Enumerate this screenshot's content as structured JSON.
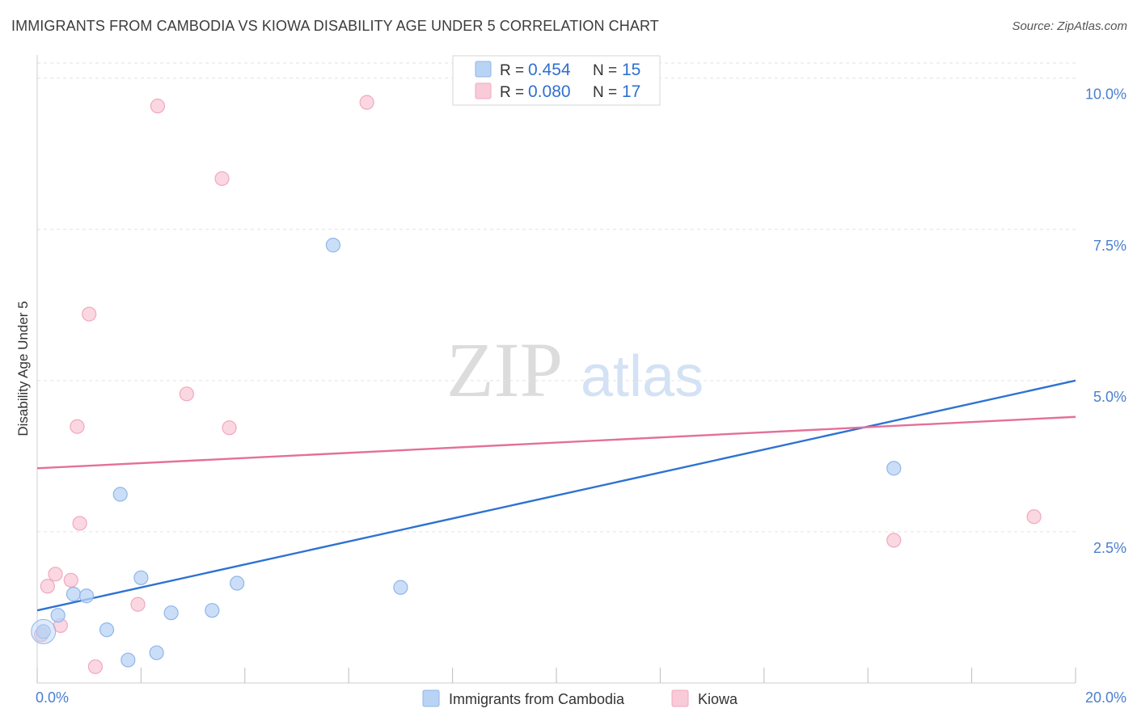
{
  "title": "IMMIGRANTS FROM CAMBODIA VS KIOWA DISABILITY AGE UNDER 5 CORRELATION CHART",
  "source": "Source: ZipAtlas.com",
  "watermark": {
    "left": "ZIP",
    "right": "atlas"
  },
  "colors": {
    "blue_fill": "#b9d3f5",
    "blue_stroke": "#8fb6e8",
    "blue_line": "#2e72d2",
    "pink_fill": "#f9cad8",
    "pink_stroke": "#f1a8be",
    "pink_line": "#e3709a",
    "grid": "#e2e2e2",
    "axis_text": "#4a7fcf"
  },
  "chart_data": {
    "type": "scatter",
    "title": "IMMIGRANTS FROM CAMBODIA VS KIOWA DISABILITY AGE UNDER 5 CORRELATION CHART",
    "xlabel": "",
    "ylabel": "Disability Age Under 5",
    "xlim": [
      0,
      20
    ],
    "ylim": [
      0,
      10.25
    ],
    "x_tick_labels": [
      "0.0%",
      "20.0%"
    ],
    "y_ticks": [
      2.5,
      5.0,
      7.5,
      10.0
    ],
    "y_tick_labels": [
      "2.5%",
      "5.0%",
      "7.5%",
      "10.0%"
    ],
    "grid": true,
    "legend_position": "top-center",
    "legend": [
      {
        "r_label": "R =",
        "r_value": "0.454",
        "n_label": "N =",
        "n_value": "15"
      },
      {
        "r_label": "R =",
        "r_value": "0.080",
        "n_label": "N =",
        "n_value": "17"
      }
    ],
    "series": [
      {
        "name": "Immigrants from Cambodia",
        "color": "#b9d3f5",
        "points": [
          [
            0.12,
            0.85
          ],
          [
            0.4,
            1.12
          ],
          [
            0.7,
            1.47
          ],
          [
            0.95,
            1.44
          ],
          [
            1.34,
            0.88
          ],
          [
            1.6,
            3.12
          ],
          [
            1.75,
            0.38
          ],
          [
            2.0,
            1.74
          ],
          [
            2.3,
            0.5
          ],
          [
            2.58,
            1.16
          ],
          [
            3.37,
            1.2
          ],
          [
            3.85,
            1.65
          ],
          [
            5.7,
            7.24
          ],
          [
            7.0,
            1.58
          ],
          [
            16.5,
            3.55
          ]
        ],
        "trend": {
          "x": [
            0,
            20
          ],
          "y": [
            1.2,
            5.0
          ]
        }
      },
      {
        "name": "Kiowa",
        "color": "#f9cad8",
        "points": [
          [
            0.08,
            0.8
          ],
          [
            0.2,
            1.6
          ],
          [
            0.35,
            1.8
          ],
          [
            0.45,
            0.95
          ],
          [
            0.65,
            1.7
          ],
          [
            0.77,
            4.24
          ],
          [
            0.82,
            2.64
          ],
          [
            1.0,
            6.1
          ],
          [
            1.12,
            0.27
          ],
          [
            1.94,
            1.3
          ],
          [
            2.32,
            9.54
          ],
          [
            2.88,
            4.78
          ],
          [
            3.56,
            8.34
          ],
          [
            3.7,
            4.22
          ],
          [
            6.35,
            9.6
          ],
          [
            16.5,
            2.36
          ],
          [
            19.2,
            2.75
          ]
        ],
        "trend": {
          "x": [
            0,
            20
          ],
          "y": [
            3.55,
            4.4
          ]
        }
      }
    ]
  }
}
